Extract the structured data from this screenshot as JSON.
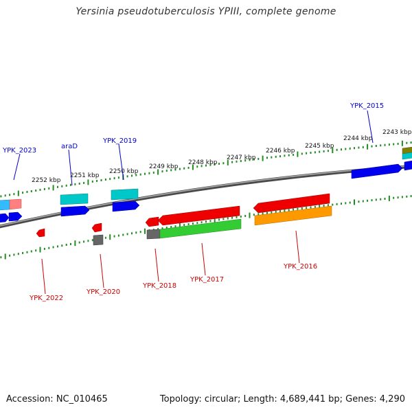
{
  "title": "Yersinia pseudotuberculosis YPIII, complete genome",
  "footer": {
    "accession": "Accession: NC_010465",
    "summary": "Topology: circular; Length: 4,689,441 bp; Genes: 4,290"
  },
  "scale_labels": [
    {
      "id": "2252",
      "text": "2252 kbp"
    },
    {
      "id": "2251",
      "text": "2251 kbp"
    },
    {
      "id": "2250",
      "text": "2250 kbp"
    },
    {
      "id": "2249",
      "text": "2249 kbp"
    },
    {
      "id": "2248",
      "text": "2248 kbp"
    },
    {
      "id": "2247",
      "text": "2247 kbp"
    },
    {
      "id": "2246",
      "text": "2246 kbp"
    },
    {
      "id": "2245",
      "text": "2245 kbp"
    },
    {
      "id": "2244",
      "text": "2244 kbp"
    },
    {
      "id": "2243",
      "text": "2243 kbp"
    }
  ],
  "gene_labels": {
    "YPK_2023": "YPK_2023",
    "araD": "araD",
    "YPK_2019": "YPK_2019",
    "YPK_2015": "YPK_2015",
    "YPK_2022": "YPK_2022",
    "YPK_2020": "YPK_2020",
    "YPK_2018": "YPK_2018",
    "YPK_2017": "YPK_2017",
    "YPK_2016": "YPK_2016"
  },
  "colors": {
    "forward_label": "#0000cc",
    "reverse_label": "#cc0000",
    "backbone": "#808080",
    "tick": "#228b22",
    "blue": "#0000ee",
    "cyan": "#00c8c8",
    "red": "#ee0000",
    "green": "#33cc33",
    "orange": "#ff9900",
    "gray": "#666666",
    "pink": "#ff8080",
    "lightblue": "#33bbff",
    "olive": "#808000"
  }
}
